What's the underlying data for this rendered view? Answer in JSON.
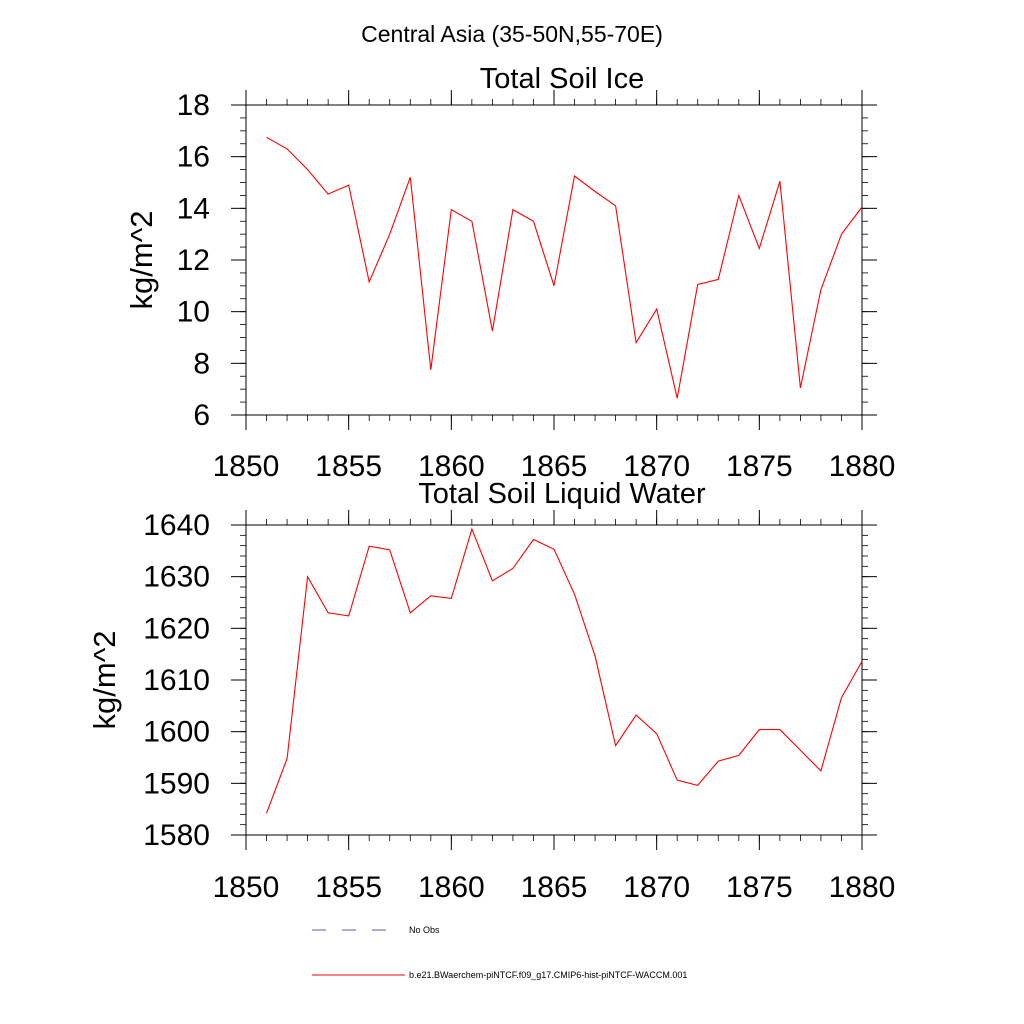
{
  "figure": {
    "title": "Central Asia (35-50N,55-70E)"
  },
  "chart_data": [
    {
      "type": "line",
      "title": "Total Soil Ice",
      "xlabel": "",
      "ylabel": "kg/m^2",
      "xlim": [
        1850,
        1880
      ],
      "ylim": [
        6,
        18
      ],
      "x_ticks": [
        1850,
        1855,
        1860,
        1865,
        1870,
        1875,
        1880
      ],
      "y_ticks": [
        6,
        8,
        10,
        12,
        14,
        16,
        18
      ],
      "x_minor_step": 1,
      "y_minor_step": 0.5,
      "grid": false,
      "series": [
        {
          "name": "b.e21.BWaerchem-piNTCF.f09_g17.CMIP6-hist-piNTCF-WACCM.001",
          "color": "#ff0000",
          "x": [
            1851,
            1852,
            1853,
            1854,
            1855,
            1856,
            1857,
            1858,
            1859,
            1860,
            1861,
            1862,
            1863,
            1864,
            1865,
            1866,
            1867,
            1868,
            1869,
            1870,
            1871,
            1872,
            1873,
            1874,
            1875,
            1876,
            1877,
            1878,
            1879,
            1880
          ],
          "y": [
            16.75,
            16.3,
            15.5,
            14.55,
            14.9,
            11.15,
            13.0,
            15.2,
            7.75,
            13.95,
            13.5,
            9.25,
            13.95,
            13.5,
            11.0,
            15.25,
            14.65,
            14.1,
            8.8,
            10.1,
            6.65,
            11.05,
            11.25,
            14.5,
            12.45,
            15.05,
            7.05,
            10.85,
            13.0,
            14.05
          ]
        }
      ]
    },
    {
      "type": "line",
      "title": "Total Soil Liquid Water",
      "xlabel": "",
      "ylabel": "kg/m^2",
      "xlim": [
        1850,
        1880
      ],
      "ylim": [
        1580,
        1640
      ],
      "x_ticks": [
        1850,
        1855,
        1860,
        1865,
        1870,
        1875,
        1880
      ],
      "y_ticks": [
        1580,
        1590,
        1600,
        1610,
        1620,
        1630,
        1640
      ],
      "x_minor_step": 1,
      "y_minor_step": 2,
      "grid": false,
      "series": [
        {
          "name": "b.e21.BWaerchem-piNTCF.f09_g17.CMIP6-hist-piNTCF-WACCM.001",
          "color": "#ff0000",
          "x": [
            1851,
            1852,
            1853,
            1854,
            1855,
            1856,
            1857,
            1858,
            1859,
            1860,
            1861,
            1862,
            1863,
            1864,
            1865,
            1866,
            1867,
            1868,
            1869,
            1870,
            1871,
            1872,
            1873,
            1874,
            1875,
            1876,
            1877,
            1878,
            1879,
            1880
          ],
          "y": [
            1584.2,
            1594.8,
            1630.0,
            1623.0,
            1622.4,
            1635.9,
            1635.2,
            1623.0,
            1626.3,
            1625.8,
            1639.2,
            1629.2,
            1631.6,
            1637.2,
            1635.3,
            1626.6,
            1614.6,
            1597.3,
            1603.2,
            1599.6,
            1590.6,
            1589.6,
            1594.3,
            1595.4,
            1600.4,
            1600.4,
            1596.4,
            1592.4,
            1606.6,
            1613.6
          ]
        }
      ]
    }
  ],
  "legend": {
    "placement": "bottom-center",
    "items": [
      {
        "label": "No Obs",
        "color": "#5a5aaa",
        "style": "dashed"
      },
      {
        "label": "b.e21.BWaerchem-piNTCF.f09_g17.CMIP6-hist-piNTCF-WACCM.001",
        "color": "#ff0000",
        "style": "solid"
      }
    ]
  }
}
